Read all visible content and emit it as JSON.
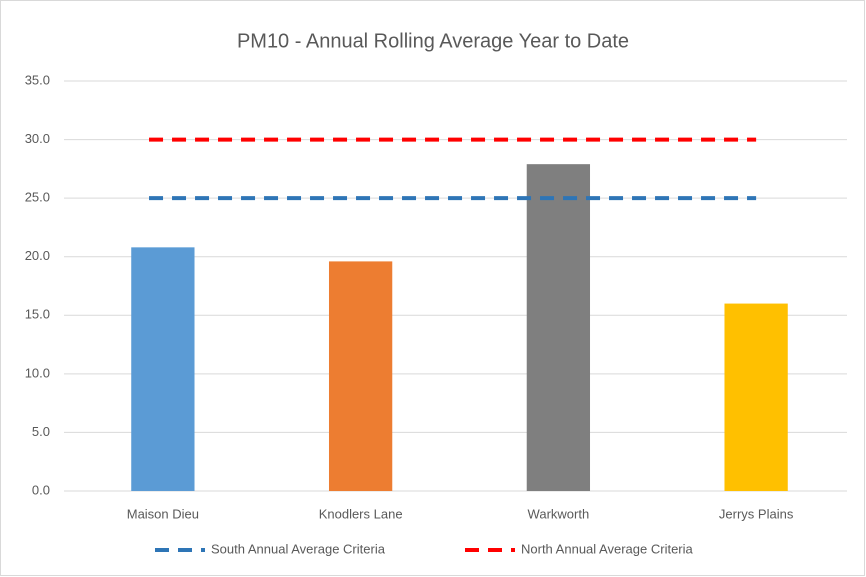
{
  "chart_data": {
    "type": "bar",
    "title": "PM10 - Annual Rolling Average Year to Date",
    "categories": [
      "Maison Dieu",
      "Knodlers Lane",
      "Warkworth",
      "Jerrys Plains"
    ],
    "values": [
      20.8,
      19.6,
      27.9,
      16.0
    ],
    "colors": [
      "#5b9bd5",
      "#ed7d31",
      "#7f7f7f",
      "#ffc000"
    ],
    "series": [
      {
        "name": "South Annual Average Criteria",
        "color": "#2e75b6",
        "values": [
          25,
          25,
          25,
          25
        ]
      },
      {
        "name": "North Annual Average Criteria",
        "color": "#ff0000",
        "values": [
          30,
          30,
          30,
          30
        ]
      }
    ],
    "ylim": [
      0,
      35
    ],
    "yticks": [
      {
        "value": 0,
        "label": "0.0"
      },
      {
        "value": 5,
        "label": "5.0"
      },
      {
        "value": 10,
        "label": "10.0"
      },
      {
        "value": 15,
        "label": "15.0"
      },
      {
        "value": 20,
        "label": "20.0"
      },
      {
        "value": 25,
        "label": "25.0"
      },
      {
        "value": 30,
        "label": "30.0"
      },
      {
        "value": 35,
        "label": "35.0"
      }
    ],
    "grid": true,
    "legend": "bottom"
  }
}
